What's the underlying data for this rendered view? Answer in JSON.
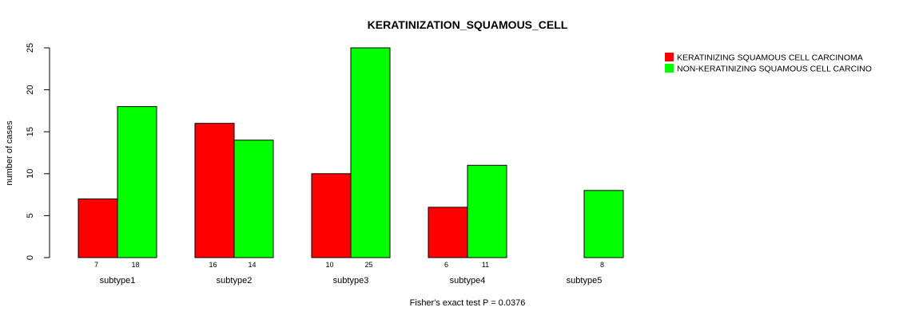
{
  "chart_data": {
    "type": "bar",
    "title": "KERATINIZATION_SQUAMOUS_CELL",
    "ylabel": "number of cases",
    "xlabel": "",
    "categories": [
      "subtype1",
      "subtype2",
      "subtype3",
      "subtype4",
      "subtype5"
    ],
    "series": [
      {
        "name": "KERATINIZING SQUAMOUS CELL CARCINOMA",
        "color": "#ff0000",
        "values": [
          7,
          16,
          10,
          6,
          0
        ],
        "labels": [
          "7",
          "16",
          "10",
          "6",
          ""
        ]
      },
      {
        "name": "NON-KERATINIZING SQUAMOUS CELL CARCINO",
        "color": "#00ff00",
        "values": [
          18,
          14,
          25,
          11,
          8
        ],
        "labels": [
          "18",
          "14",
          "25",
          "11",
          "8"
        ]
      }
    ],
    "ylim": [
      0,
      25
    ],
    "yticks": [
      0,
      5,
      10,
      15,
      20,
      25
    ],
    "ytick_labels": [
      "0",
      "5",
      "10",
      "15",
      "20",
      "25"
    ],
    "legend_position": "top-right",
    "grid": false,
    "footnote": "Fisher's exact test P = 0.0376"
  }
}
